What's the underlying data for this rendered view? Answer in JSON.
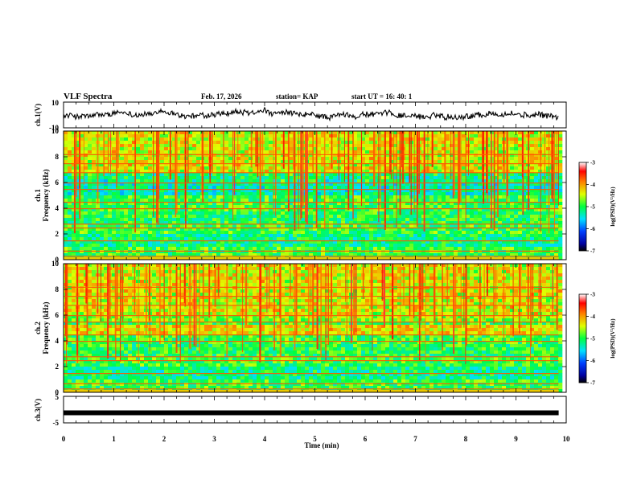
{
  "header": {
    "title": "VLF Spectra",
    "date": "Feb. 17, 2026",
    "station": "station= KAP",
    "start": "start  UT  =   16: 40: 1"
  },
  "chart_data": [
    {
      "type": "line",
      "name": "ch1-waveform",
      "ylabel": "ch.1(V)",
      "ylim": [
        -10,
        10
      ],
      "yticks": [
        "10",
        "-10"
      ],
      "x_range_min": [
        0,
        9.85
      ],
      "note": "noisy waveform centered near 0 V, amplitude about ±3 V"
    },
    {
      "type": "heatmap",
      "name": "ch1-spectrogram",
      "ylabel_channel": "ch.1",
      "ylabel": "Frequency  (kHz)",
      "ylim": [
        0,
        10
      ],
      "yticks": [
        "0",
        "2",
        "4",
        "6",
        "8",
        "10"
      ],
      "x_range_min": [
        0,
        9.85
      ],
      "colorbar": {
        "label": "log(PSD)(V²/Hz)",
        "ticks": [
          "-3",
          "-4",
          "-5",
          "-6",
          "-7"
        ],
        "range": [
          -7,
          -3
        ]
      }
    },
    {
      "type": "heatmap",
      "name": "ch2-spectrogram",
      "ylabel_channel": "ch.2",
      "ylabel": "Frequency  (kHz)",
      "ylim": [
        0,
        10
      ],
      "yticks": [
        "0",
        "2",
        "4",
        "6",
        "8",
        "10"
      ],
      "x_range_min": [
        0,
        9.85
      ],
      "colorbar": {
        "label": "log(PSD)(V²/Hz)",
        "ticks": [
          "-3",
          "-4",
          "-5",
          "-6",
          "-7"
        ],
        "range": [
          -7,
          -3
        ]
      }
    },
    {
      "type": "line",
      "name": "ch3-level",
      "ylabel": "ch.3(V)",
      "ylim": [
        -5,
        5
      ],
      "yticks": [
        "5",
        "-5"
      ],
      "value": -1.2,
      "x_range_min": [
        0,
        9.85
      ]
    }
  ],
  "xaxis": {
    "label": "Time  (min)",
    "range": [
      0,
      10
    ],
    "ticks": [
      "0",
      "1",
      "2",
      "3",
      "4",
      "5",
      "6",
      "7",
      "8",
      "9",
      "10"
    ]
  }
}
